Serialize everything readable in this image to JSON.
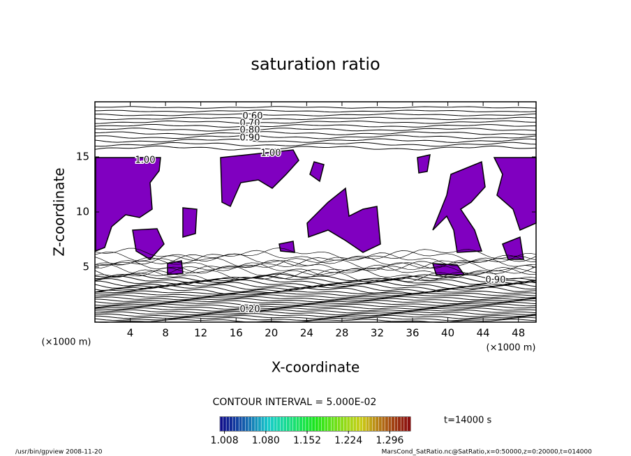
{
  "chart_data": {
    "type": "contour",
    "title": "saturation ratio",
    "xlabel": "X-coordinate",
    "ylabel": "Z-coordinate",
    "x_unit": "(×1000 m)",
    "xlim": [
      0,
      50
    ],
    "ylim": [
      0,
      20
    ],
    "xticks": [
      4,
      8,
      12,
      16,
      20,
      24,
      28,
      32,
      36,
      40,
      44,
      48
    ],
    "yticks": [
      5,
      10,
      15
    ],
    "fill_color": "#8000c0",
    "contour_labels": [
      {
        "value": 0.6,
        "label": "0.60"
      },
      {
        "value": 0.7,
        "label": "0.70"
      },
      {
        "value": 0.8,
        "label": "0.80"
      },
      {
        "value": 0.9,
        "label": "0.90"
      },
      {
        "value": 1.0,
        "label": "1.00"
      },
      {
        "value": 1.0,
        "label": "1.00"
      },
      {
        "value": 0.9,
        "label": "0.90"
      },
      {
        "value": 0.2,
        "label": "0.20"
      }
    ],
    "contour_interval": "CONTOUR INTERVAL = 5.000E-02",
    "time_label": "t=14000 s",
    "colorbar_lim": [
      1.0,
      1.332
    ],
    "colorbar_ticks": [
      1.008,
      {
        "value": 1.08,
        "label": "1.080"
      },
      1.152,
      1.224,
      1.296
    ],
    "footer_left": "/usr/bin/gpview  2008-11-20",
    "footer_right": "MarsCond_SatRatio.nc@SatRatio,x=0:50000,z=0:20000,t=014000"
  }
}
